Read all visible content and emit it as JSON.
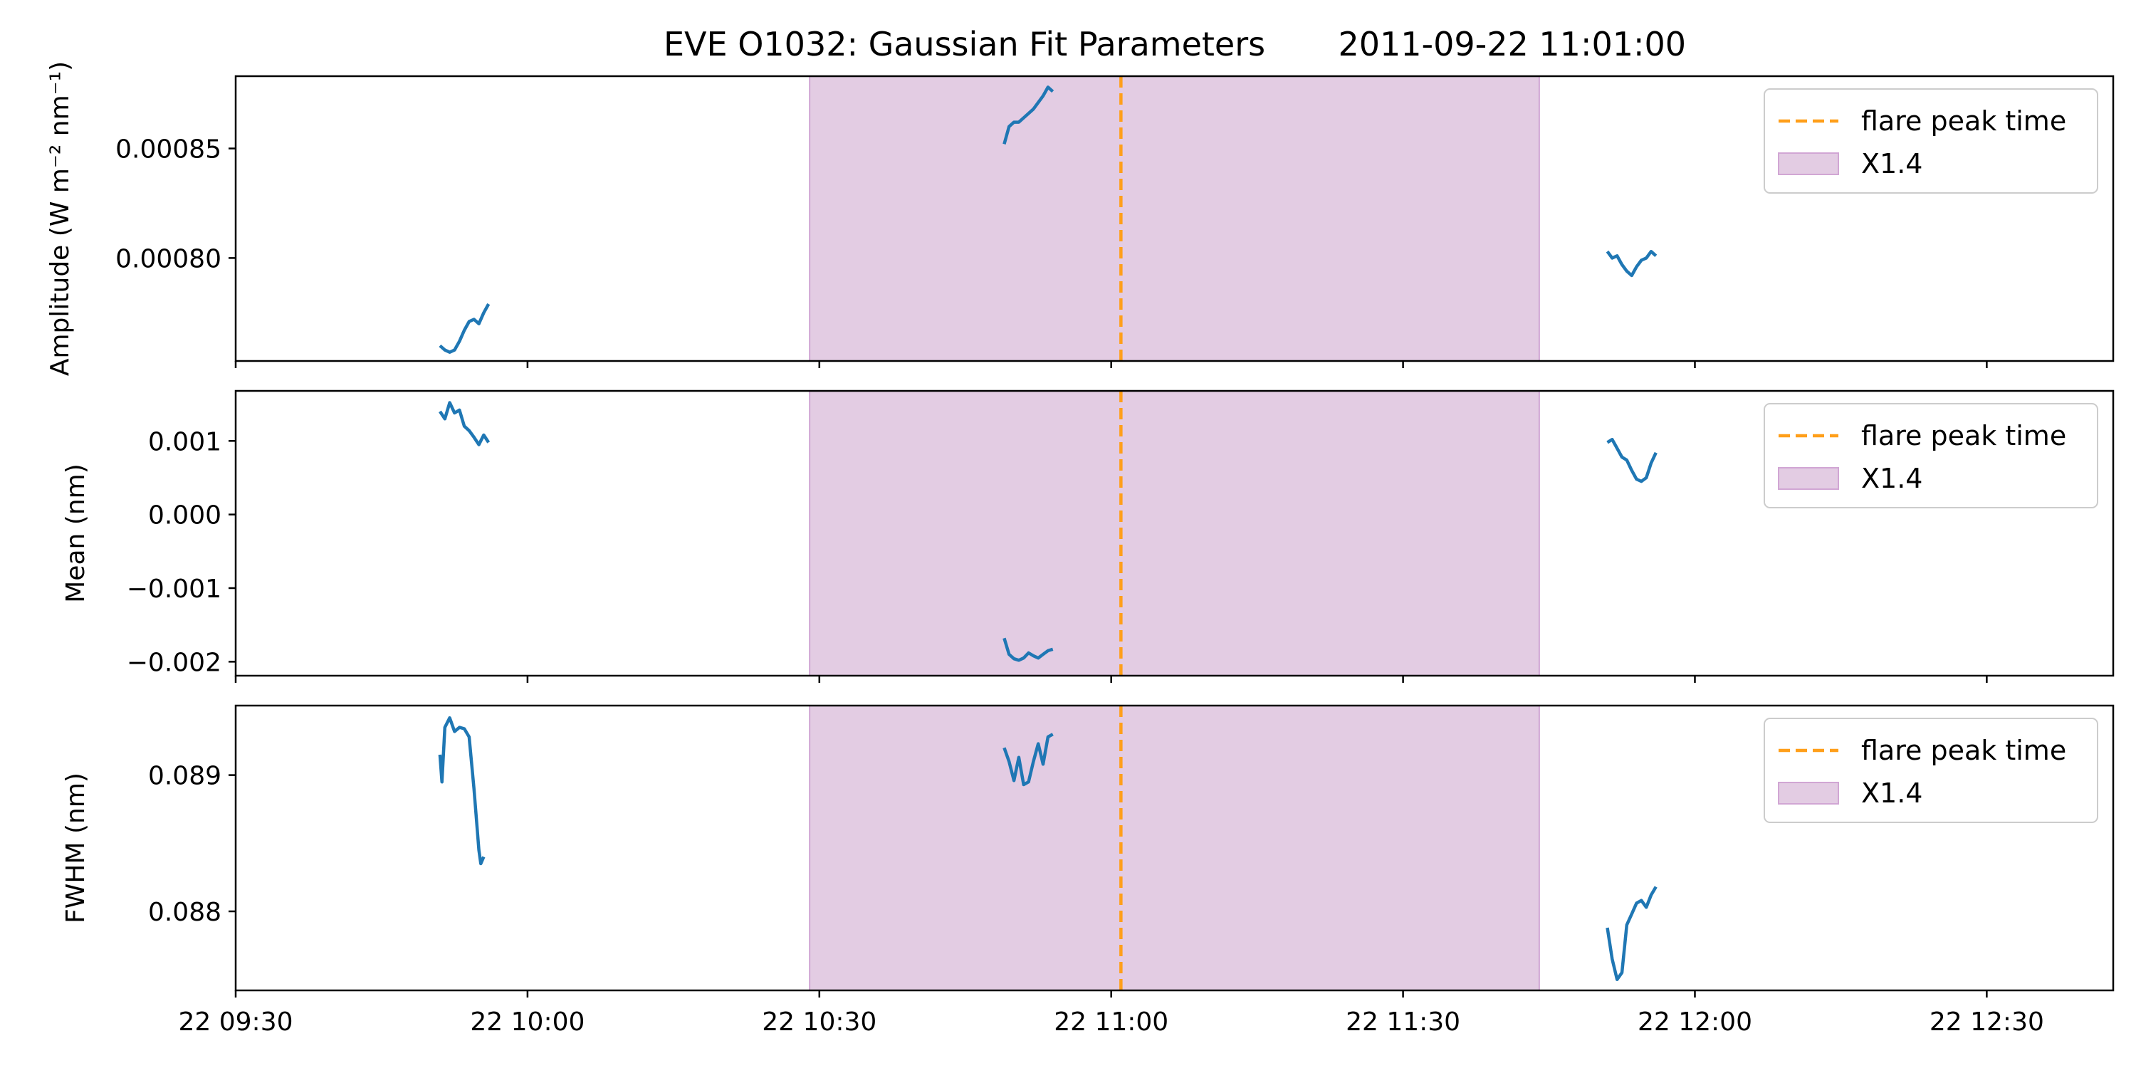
{
  "title": "EVE O1032: Gaussian Fit Parameters       2011-09-22 11:01:00",
  "colors": {
    "series": "#1f77b4",
    "flare_line": "#ff9f1a",
    "flare_band_fill": "#e3cce3",
    "flare_band_edge": "#d1a6d4"
  },
  "legend": {
    "flare_label": "flare peak time",
    "band_label": "X1.4",
    "placement": "upper right"
  },
  "chart_data": [
    {
      "type": "line",
      "ylabel": "Amplitude (W m⁻² nm⁻¹)",
      "xlim": [
        "2011-09-22 09:30",
        "2011-09-22 12:43"
      ],
      "ylim": [
        0.000753,
        0.000883
      ],
      "yticks": [
        0.0008,
        0.00085
      ],
      "ytick_labels": [
        "0.00080",
        "0.00085"
      ],
      "show_xtick_labels": false,
      "flare_peak": "2011-09-22 11:01",
      "band": [
        "2011-09-22 10:29",
        "2011-09-22 11:44"
      ],
      "series": [
        {
          "x": [
            "09:51",
            "09:51.5",
            "09:52",
            "09:52.5",
            "09:53",
            "09:53.5",
            "09:54",
            "09:54.5",
            "09:55",
            "09:55.5",
            "09:56"
          ],
          "y": [
            0.00076,
            0.000758,
            0.000757,
            0.000758,
            0.000762,
            0.000767,
            0.000771,
            0.000772,
            0.00077,
            0.000775,
            0.000779
          ]
        },
        {
          "x": [
            "10:49",
            "10:49.5",
            "10:50",
            "10:50.5",
            "10:51",
            "10:51.5",
            "10:52",
            "10:52.5",
            "10:53",
            "10:53.5",
            "10:54"
          ],
          "y": [
            0.000852,
            0.00086,
            0.000862,
            0.000862,
            0.000864,
            0.000866,
            0.000868,
            0.000871,
            0.000874,
            0.000878,
            0.000876
          ]
        },
        {
          "x": [
            "11:51",
            "11:51.5",
            "11:52",
            "11:52.5",
            "11:53",
            "11:53.5",
            "11:54",
            "11:54.5",
            "11:55",
            "11:55.5",
            "11:56"
          ],
          "y": [
            0.000803,
            0.0008,
            0.000801,
            0.000797,
            0.000794,
            0.000792,
            0.000796,
            0.000799,
            0.0008,
            0.000803,
            0.000801
          ]
        }
      ]
    },
    {
      "type": "line",
      "ylabel": "Mean (nm)",
      "xlim": [
        "2011-09-22 09:30",
        "2011-09-22 12:43"
      ],
      "ylim": [
        -0.00219,
        0.00168
      ],
      "yticks": [
        -0.002,
        -0.001,
        0.0,
        0.001
      ],
      "ytick_labels": [
        "−0.002",
        "−0.001",
        "0.000",
        "0.001"
      ],
      "show_xtick_labels": false,
      "flare_peak": "2011-09-22 11:01",
      "band": [
        "2011-09-22 10:29",
        "2011-09-22 11:44"
      ],
      "series": [
        {
          "x": [
            "09:51",
            "09:51.5",
            "09:52",
            "09:52.5",
            "09:53",
            "09:53.5",
            "09:54",
            "09:54.5",
            "09:55",
            "09:55.5",
            "09:56"
          ],
          "y": [
            0.0014,
            0.0013,
            0.00152,
            0.00138,
            0.00142,
            0.0012,
            0.00114,
            0.00105,
            0.00095,
            0.00108,
            0.00098
          ]
        },
        {
          "x": [
            "10:49",
            "10:49.5",
            "10:50",
            "10:50.5",
            "10:51",
            "10:51.5",
            "10:52",
            "10:52.5",
            "10:53",
            "10:53.5",
            "10:54"
          ],
          "y": [
            -0.00168,
            -0.0019,
            -0.00196,
            -0.00198,
            -0.00195,
            -0.00188,
            -0.00192,
            -0.00195,
            -0.0019,
            -0.00185,
            -0.00183
          ]
        },
        {
          "x": [
            "11:51",
            "11:51.5",
            "11:52",
            "11:52.5",
            "11:53",
            "11:53.5",
            "11:54",
            "11:54.5",
            "11:55",
            "11:55.5",
            "11:56"
          ],
          "y": [
            0.00098,
            0.00102,
            0.0009,
            0.00078,
            0.00074,
            0.0006,
            0.00048,
            0.00045,
            0.0005,
            0.0007,
            0.00084
          ]
        }
      ]
    },
    {
      "type": "line",
      "ylabel": "FWHM (nm)",
      "xlabel": "",
      "xlim": [
        "2011-09-22 09:30",
        "2011-09-22 12:43"
      ],
      "ylim": [
        0.08742,
        0.08951
      ],
      "yticks": [
        0.088,
        0.089
      ],
      "ytick_labels": [
        "0.088",
        "0.089"
      ],
      "xtick_labels": [
        "22 09:30",
        "22 10:00",
        "22 10:30",
        "22 11:00",
        "22 11:30",
        "22 12:00",
        "22 12:30"
      ],
      "show_xtick_labels": true,
      "flare_peak": "2011-09-22 11:01",
      "band": [
        "2011-09-22 10:29",
        "2011-09-22 11:44"
      ],
      "series": [
        {
          "x": [
            "09:51",
            "09:51.2",
            "09:51.5",
            "09:52",
            "09:52.5",
            "09:53",
            "09:53.5",
            "09:54",
            "09:54.5",
            "09:55",
            "09:55.2",
            "09:55.5"
          ],
          "y": [
            0.08915,
            0.08895,
            0.08935,
            0.08942,
            0.08932,
            0.08935,
            0.08934,
            0.08928,
            0.0889,
            0.08845,
            0.08835,
            0.0884
          ]
        },
        {
          "x": [
            "10:49",
            "10:49.5",
            "10:50",
            "10:50.5",
            "10:51",
            "10:51.5",
            "10:52",
            "10:52.5",
            "10:53",
            "10:53.5",
            "10:54"
          ],
          "y": [
            0.0892,
            0.0891,
            0.08896,
            0.08913,
            0.08893,
            0.08895,
            0.0891,
            0.08923,
            0.08908,
            0.08928,
            0.0893
          ]
        },
        {
          "x": [
            "11:51",
            "11:51.5",
            "11:52",
            "11:52.5",
            "11:53",
            "11:53.5",
            "11:54",
            "11:54.5",
            "11:55",
            "11:55.5",
            "11:56"
          ],
          "y": [
            0.08788,
            0.08765,
            0.0875,
            0.08755,
            0.0879,
            0.08798,
            0.08806,
            0.08808,
            0.08803,
            0.08812,
            0.08818
          ]
        }
      ]
    }
  ]
}
